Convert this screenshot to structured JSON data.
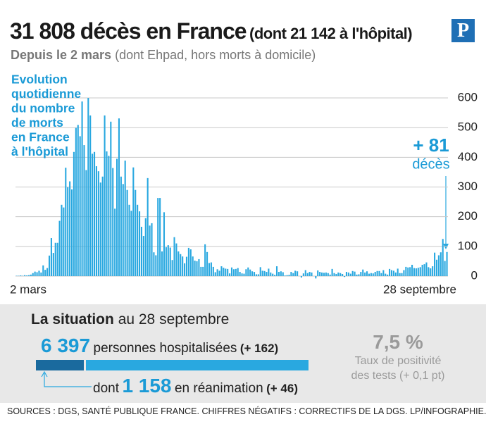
{
  "header": {
    "title": "31 808 décès en France",
    "title_note": "(dont 21 142 à l'hôpital)",
    "subtitle_bold": "Depuis le 2 mars",
    "subtitle": "(dont Ehpad, hors morts à domicile)",
    "logo": "P"
  },
  "chart_data": {
    "type": "bar",
    "color": "#29a8e0",
    "grid": true,
    "annotation_lines": [
      "Evolution",
      "quotidienne",
      "du nombre",
      "de morts",
      "en France",
      "à l'hôpital"
    ],
    "last_value_label": "+ 81",
    "last_value_unit": "décès",
    "ylim": [
      -20,
      620
    ],
    "yticks": [
      0,
      100,
      200,
      300,
      400,
      500,
      600
    ],
    "categories": [
      "2 mars",
      null,
      null,
      null,
      null,
      null,
      null,
      null,
      null,
      null,
      null,
      null,
      null,
      null,
      null,
      null,
      null,
      null,
      null,
      null,
      null,
      null,
      null,
      null,
      null,
      null,
      null,
      null,
      null,
      null,
      null,
      null,
      null,
      null,
      null,
      null,
      null,
      null,
      null,
      null,
      null,
      null,
      null,
      null,
      null,
      null,
      null,
      null,
      null,
      null,
      null,
      null,
      null,
      null,
      null,
      null,
      null,
      null,
      null,
      null,
      null,
      null,
      null,
      null,
      null,
      null,
      null,
      null,
      null,
      null,
      null,
      null,
      null,
      null,
      null,
      null,
      null,
      null,
      null,
      null,
      null,
      null,
      null,
      null,
      null,
      null,
      null,
      null,
      null,
      null,
      null,
      null,
      null,
      null,
      null,
      null,
      null,
      null,
      null,
      null,
      null,
      null,
      null,
      null,
      null,
      null,
      null,
      null,
      null,
      null,
      null,
      null,
      null,
      null,
      null,
      null,
      null,
      null,
      null,
      null,
      null,
      null,
      null,
      null,
      null,
      null,
      null,
      null,
      null,
      null,
      null,
      null,
      null,
      null,
      null,
      null,
      null,
      null,
      null,
      null,
      null,
      null,
      null,
      null,
      null,
      null,
      null,
      null,
      null,
      null,
      null,
      null,
      null,
      null,
      null,
      null,
      null,
      null,
      null,
      null,
      null,
      null,
      null,
      null,
      null,
      null,
      null,
      null,
      null,
      null,
      null,
      null,
      null,
      null,
      null,
      null,
      null,
      null,
      null,
      null,
      null,
      null,
      null,
      null,
      null,
      null,
      null,
      null,
      null,
      null,
      null,
      null,
      null,
      null,
      null,
      null,
      null,
      null,
      null,
      null,
      null,
      null,
      null,
      null,
      null,
      null,
      null,
      null,
      null,
      null,
      "28 septembre"
    ],
    "values": [
      1,
      1,
      2,
      1,
      3,
      2,
      3,
      5,
      10,
      15,
      13,
      18,
      12,
      36,
      21,
      27,
      69,
      128,
      78,
      112,
      112,
      186,
      240,
      231,
      365,
      299,
      319,
      292,
      418,
      499,
      509,
      471,
      588,
      441,
      357,
      600,
      541,
      412,
      418,
      370,
      353,
      315,
      335,
      541,
      420,
      405,
      520,
      364,
      227,
      395,
      531,
      335,
      310,
      389,
      290,
      240,
      220,
      366,
      290,
      240,
      218,
      166,
      135,
      195,
      330,
      170,
      178,
      80,
      70,
      263,
      263,
      83,
      215,
      97,
      104,
      96,
      54,
      131,
      110,
      83,
      74,
      66,
      43,
      65,
      95,
      90,
      66,
      52,
      50,
      57,
      31,
      31,
      107,
      81,
      44,
      46,
      31,
      13,
      23,
      18,
      33,
      28,
      25,
      24,
      9,
      29,
      23,
      24,
      27,
      14,
      9,
      8,
      23,
      29,
      22,
      16,
      14,
      6,
      6,
      30,
      18,
      17,
      14,
      25,
      12,
      8,
      4,
      33,
      14,
      16,
      13,
      2,
      3,
      4,
      14,
      10,
      18,
      16,
      0,
      -5,
      9,
      20,
      10,
      14,
      12,
      0,
      -8,
      19,
      14,
      12,
      11,
      12,
      10,
      5,
      24,
      10,
      7,
      12,
      10,
      7,
      -3,
      14,
      12,
      8,
      17,
      15,
      5,
      6,
      14,
      22,
      12,
      16,
      8,
      10,
      9,
      14,
      17,
      17,
      10,
      20,
      8,
      5,
      24,
      20,
      18,
      12,
      25,
      10,
      10,
      20,
      31,
      29,
      30,
      38,
      27,
      26,
      28,
      30,
      38,
      40,
      46,
      30,
      26,
      33,
      79,
      55,
      70,
      80,
      125,
      51,
      81
    ]
  },
  "situation": {
    "title": "La situation",
    "date": "au 28 septembre",
    "hospitalized": "6 397",
    "hospitalized_label": "personnes hospitalisées",
    "hospitalized_change": "(+ 162)",
    "icu_prefix": "dont",
    "icu": "1 158",
    "icu_label": "en réanimation",
    "icu_change": "(+ 46)",
    "positivity": "7,5 %",
    "positivity_label": [
      "Taux de positivité",
      "des tests (+ 0,1 pt)"
    ]
  },
  "footer": "SOURCES : DGS, SANTÉ PUBLIQUE FRANCE.  CHIFFRES NÉGATIFS : CORRECTIFS DE LA DGS.  LP/INFOGRAPHIE."
}
